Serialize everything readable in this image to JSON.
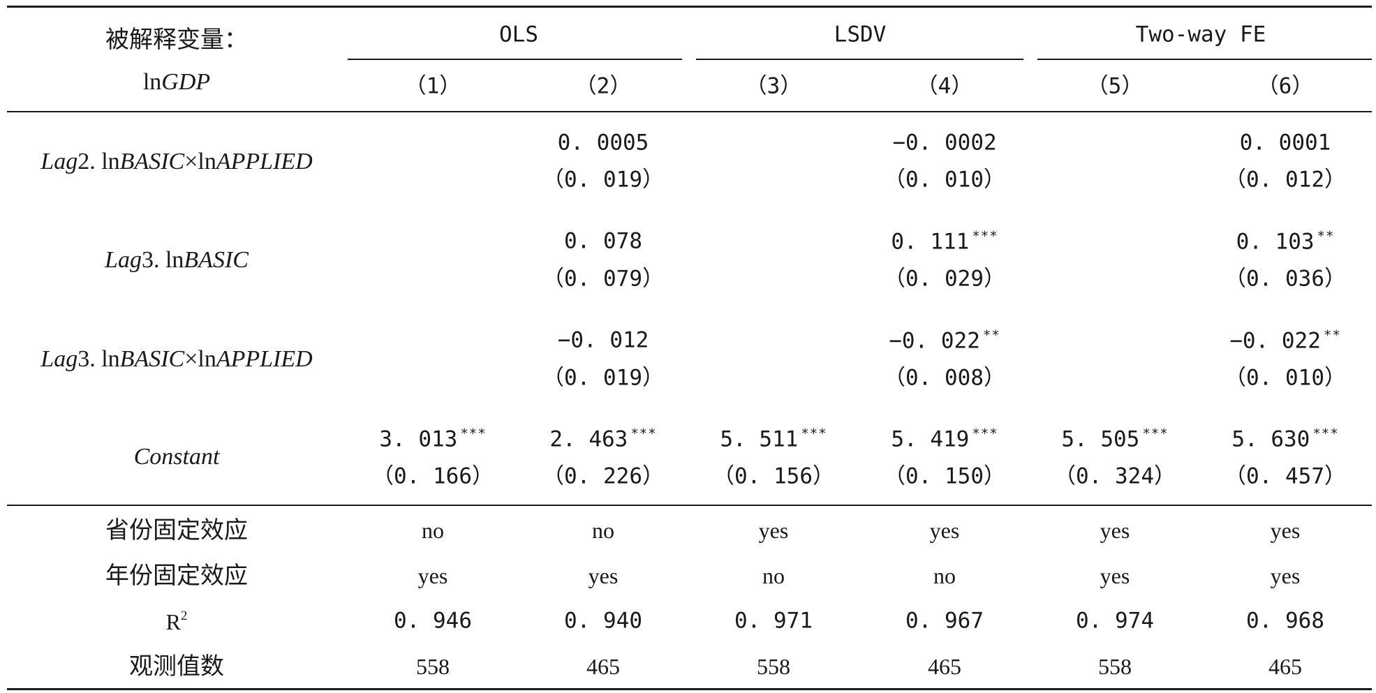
{
  "header": {
    "dep_var_label_line1": "被解释变量：",
    "dep_var_label_line2_prefix": "ln",
    "dep_var_label_line2_italic": "GDP",
    "groups": [
      "OLS",
      "LSDV",
      "Two-way FE"
    ],
    "columns": [
      "（1）",
      "（2）",
      "（3）",
      "（4）",
      "（5）",
      "（6）"
    ]
  },
  "rows": [
    {
      "name_parts": [
        [
          "i",
          "Lag"
        ],
        [
          "n",
          "2. ln"
        ],
        [
          "i",
          "BASIC"
        ],
        [
          "n",
          "×ln"
        ],
        [
          "i",
          "APPLIED"
        ]
      ],
      "coefs": [
        "",
        "0. 0005",
        "",
        "−0. 0002",
        "",
        "0. 0001"
      ],
      "stars": [
        "",
        "",
        "",
        "",
        "",
        ""
      ],
      "ses": [
        "",
        "（0. 019）",
        "",
        "（0. 010）",
        "",
        "（0. 012）"
      ]
    },
    {
      "name_parts": [
        [
          "i",
          "Lag"
        ],
        [
          "n",
          "3. ln"
        ],
        [
          "i",
          "BASIC"
        ]
      ],
      "coefs": [
        "",
        "0. 078",
        "",
        "0. 111",
        "",
        "0. 103"
      ],
      "stars": [
        "",
        "",
        "",
        "***",
        "",
        "**"
      ],
      "ses": [
        "",
        "（0. 079）",
        "",
        "（0. 029）",
        "",
        "（0. 036）"
      ]
    },
    {
      "name_parts": [
        [
          "i",
          "Lag"
        ],
        [
          "n",
          "3. ln"
        ],
        [
          "i",
          "BASIC"
        ],
        [
          "n",
          "×ln"
        ],
        [
          "i",
          "APPLIED"
        ]
      ],
      "coefs": [
        "",
        "−0. 012",
        "",
        "−0. 022",
        "",
        "−0. 022"
      ],
      "stars": [
        "",
        "",
        "",
        "**",
        "",
        "**"
      ],
      "ses": [
        "",
        "（0. 019）",
        "",
        "（0. 008）",
        "",
        "（0. 010）"
      ]
    },
    {
      "name_parts": [
        [
          "i",
          "Constant"
        ]
      ],
      "coefs": [
        "3. 013",
        "2. 463",
        "5. 511",
        "5. 419",
        "5. 505",
        "5. 630"
      ],
      "stars": [
        "***",
        "***",
        "***",
        "***",
        "***",
        "***"
      ],
      "ses": [
        "（0. 166）",
        "（0. 226）",
        "（0. 156）",
        "（0. 150）",
        "（0. 324）",
        "（0. 457）"
      ]
    }
  ],
  "footer": [
    {
      "label": "省份固定效应",
      "values": [
        "no",
        "no",
        "yes",
        "yes",
        "yes",
        "yes"
      ],
      "kind": "text"
    },
    {
      "label": "年份固定效应",
      "values": [
        "yes",
        "yes",
        "no",
        "no",
        "yes",
        "yes"
      ],
      "kind": "text"
    },
    {
      "label": "R",
      "label_sup": "2",
      "values": [
        "0. 946",
        "0. 940",
        "0. 971",
        "0. 967",
        "0. 974",
        "0. 968"
      ],
      "kind": "num"
    },
    {
      "label": "观测值数",
      "values": [
        "558",
        "465",
        "558",
        "465",
        "558",
        "465"
      ],
      "kind": "ls"
    }
  ]
}
